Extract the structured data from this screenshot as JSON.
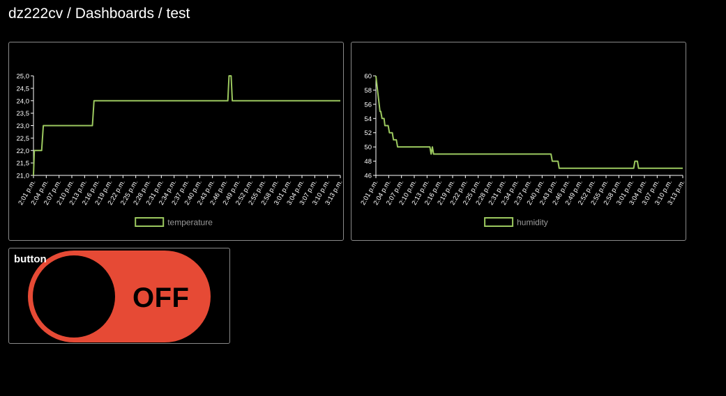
{
  "breadcrumb": {
    "parts": [
      "dz222cv",
      "Dashboards",
      "test"
    ],
    "separator": " / "
  },
  "colors": {
    "line": "#9cc95f",
    "axis": "#ffffff",
    "legend_text": "#9a9a9a",
    "toggle_off": "#e64a35",
    "panel_border": "#8a8a8a"
  },
  "button_widget": {
    "title": "button",
    "state_label": "OFF"
  },
  "chart_data": [
    {
      "type": "line",
      "title": "",
      "legend": [
        "temperature"
      ],
      "legend_position": "bottom-center",
      "grid": false,
      "ylim": [
        21.0,
        25.0
      ],
      "y_ticks": [
        "21,0",
        "21,5",
        "22,0",
        "22,5",
        "23,0",
        "23,5",
        "24,0",
        "24,5",
        "25,0"
      ],
      "x_ticks": [
        "2:01 p.m.",
        "2:04 p.m.",
        "2:07 p.m.",
        "2:10 p.m.",
        "2:13 p.m.",
        "2:16 p.m.",
        "2:19 p.m.",
        "2:22 p.m.",
        "2:25 p.m.",
        "2:28 p.m.",
        "2:31 p.m.",
        "2:34 p.m.",
        "2:37 p.m.",
        "2:40 p.m.",
        "2:43 p.m.",
        "2:46 p.m.",
        "2:49 p.m.",
        "2:52 p.m.",
        "2:55 p.m.",
        "2:58 p.m.",
        "3:01 p.m.",
        "3:04 p.m.",
        "3:07 p.m.",
        "3:10 p.m.",
        "3:13 p.m."
      ],
      "xlim": [
        0,
        75
      ],
      "series": [
        {
          "name": "temperature",
          "x": [
            0,
            0.2,
            0.5,
            1.5,
            2.0,
            2.4,
            14.4,
            14.8,
            47.5,
            47.8,
            48.3,
            48.6,
            75
          ],
          "y": [
            21.0,
            22.0,
            22.0,
            22.0,
            22.0,
            23.0,
            23.0,
            24.0,
            24.0,
            25.0,
            25.0,
            24.0,
            24.0
          ]
        }
      ]
    },
    {
      "type": "line",
      "title": "",
      "legend": [
        "humidity"
      ],
      "legend_position": "bottom-center",
      "grid": false,
      "ylim": [
        46,
        60
      ],
      "y_ticks": [
        "46",
        "48",
        "50",
        "52",
        "54",
        "56",
        "58",
        "60"
      ],
      "x_ticks": [
        "2:01 p.m.",
        "2:04 p.m.",
        "2:07 p.m.",
        "2:10 p.m.",
        "2:13 p.m.",
        "2:16 p.m.",
        "2:19 p.m.",
        "2:22 p.m.",
        "2:25 p.m.",
        "2:28 p.m.",
        "2:31 p.m.",
        "2:34 p.m.",
        "2:37 p.m.",
        "2:40 p.m.",
        "2:43 p.m.",
        "2:46 p.m.",
        "2:49 p.m.",
        "2:52 p.m.",
        "2:55 p.m.",
        "2:58 p.m.",
        "3:01 p.m.",
        "3:04 p.m.",
        "3:07 p.m.",
        "3:10 p.m.",
        "3:13 p.m."
      ],
      "xlim": [
        0,
        75
      ],
      "series": [
        {
          "name": "humidity",
          "x": [
            0,
            0.4,
            0.8,
            1.0,
            1.2,
            1.5,
            2.0,
            2.2,
            2.5,
            3.0,
            3.3,
            4.0,
            4.3,
            5.0,
            5.3,
            6.0,
            6.3,
            13.2,
            13.5,
            13.8,
            14.1,
            14.4,
            42.8,
            43.1,
            44.5,
            44.8,
            63.0,
            63.3,
            63.9,
            64.2,
            75
          ],
          "y": [
            60,
            58,
            56,
            55,
            55,
            54,
            54,
            53,
            53,
            53,
            52,
            52,
            51,
            51,
            50,
            50,
            50,
            50,
            49,
            50,
            49,
            49,
            49,
            48,
            48,
            47,
            47,
            48,
            48,
            47,
            47
          ]
        }
      ]
    }
  ]
}
